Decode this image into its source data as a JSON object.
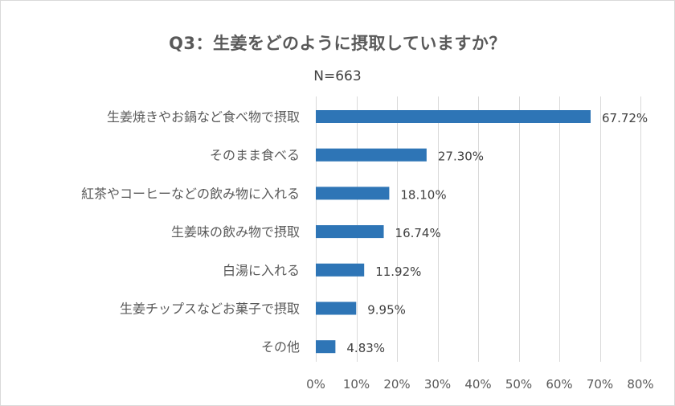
{
  "chart_data": {
    "type": "bar",
    "orientation": "horizontal",
    "title": "Q3：生姜をどのように摂取していますか？",
    "subtitle": "N=663",
    "categories": [
      "生姜焼きやお鍋など食べ物で摂取",
      "そのまま食べる",
      "紅茶やコーヒーなどの飲み物に入れる",
      "生姜味の飲み物で摂取",
      "白湯に入れる",
      "生姜チップスなどお菓子で摂取",
      "その他"
    ],
    "values": [
      67.72,
      27.3,
      18.1,
      16.74,
      11.92,
      9.95,
      4.83
    ],
    "value_labels": [
      "67.72%",
      "27.30%",
      "18.10%",
      "16.74%",
      "11.92%",
      "9.95%",
      "4.83%"
    ],
    "xlim": [
      0,
      80
    ],
    "x_ticks": [
      0,
      10,
      20,
      30,
      40,
      50,
      60,
      70,
      80
    ],
    "x_tick_labels": [
      "0%",
      "10%",
      "20%",
      "30%",
      "40%",
      "50%",
      "60%",
      "70%",
      "80%"
    ],
    "grid": true,
    "bar_color": "#2e75b6"
  }
}
